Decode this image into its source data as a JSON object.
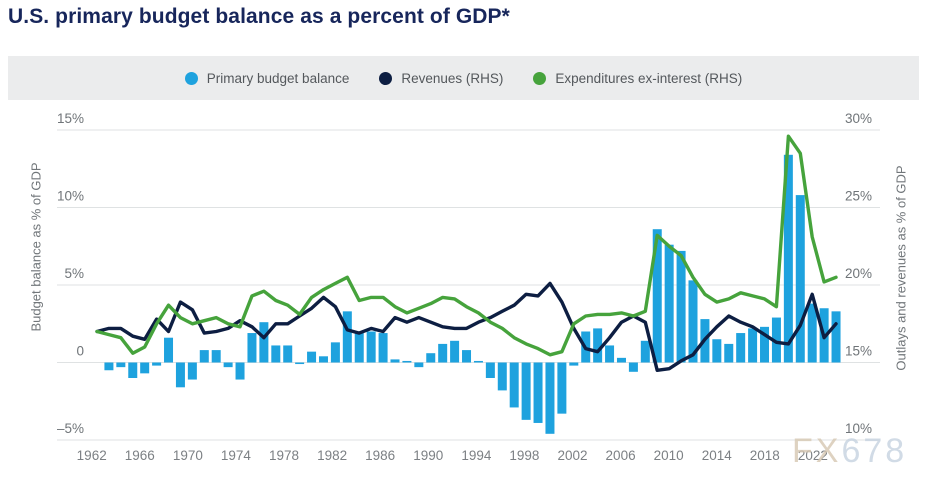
{
  "page": {
    "title": "U.S. primary budget balance as a percent of GDP*",
    "watermark": {
      "part1": "FX",
      "part2": "678"
    }
  },
  "legend": {
    "items": [
      {
        "label": "Primary budget balance",
        "color": "#1ea2de",
        "marker": "circle"
      },
      {
        "label": "Revenues (RHS)",
        "color": "#0d1e42",
        "marker": "circle"
      },
      {
        "label": "Expenditures ex-interest (RHS)",
        "color": "#46a33c",
        "marker": "circle"
      }
    ]
  },
  "chart_data": {
    "type": "bar",
    "title": "U.S. primary budget balance as a percent of GDP*",
    "x": [
      1962,
      1963,
      1964,
      1965,
      1966,
      1967,
      1968,
      1969,
      1970,
      1971,
      1972,
      1973,
      1974,
      1975,
      1976,
      1977,
      1978,
      1979,
      1980,
      1981,
      1982,
      1983,
      1984,
      1985,
      1986,
      1987,
      1988,
      1989,
      1990,
      1991,
      1992,
      1993,
      1994,
      1995,
      1996,
      1997,
      1998,
      1999,
      2000,
      2001,
      2002,
      2003,
      2004,
      2005,
      2006,
      2007,
      2008,
      2009,
      2010,
      2011,
      2012,
      2013,
      2014,
      2015,
      2016,
      2017,
      2018,
      2019,
      2020,
      2021,
      2022,
      2023,
      2024
    ],
    "series": [
      {
        "name": "Primary budget balance",
        "type": "bar",
        "axis": "left",
        "color": "#1ea2de",
        "values": [
          0.0,
          -0.5,
          -0.3,
          -1.0,
          -0.7,
          -0.2,
          1.6,
          -1.6,
          -1.1,
          0.8,
          0.8,
          -0.3,
          -1.1,
          1.9,
          2.6,
          1.1,
          1.1,
          -0.1,
          0.7,
          0.4,
          1.3,
          3.3,
          1.9,
          2.0,
          1.9,
          0.2,
          0.1,
          -0.3,
          0.6,
          1.2,
          1.4,
          0.8,
          0.1,
          -1.0,
          -1.8,
          -2.9,
          -3.7,
          -3.9,
          -4.6,
          -3.3,
          -0.2,
          2.0,
          2.2,
          1.1,
          0.3,
          -0.6,
          1.4,
          8.6,
          7.6,
          7.2,
          5.3,
          2.8,
          1.5,
          1.2,
          1.9,
          2.2,
          2.3,
          2.9,
          13.4,
          10.8,
          3.8,
          3.5,
          3.3
        ]
      },
      {
        "name": "Revenues (RHS)",
        "type": "line",
        "axis": "right",
        "color": "#0d1e42",
        "values": [
          17.0,
          17.2,
          17.2,
          16.7,
          16.5,
          17.8,
          17.0,
          18.9,
          18.4,
          16.9,
          17.0,
          17.2,
          17.7,
          17.3,
          16.6,
          17.5,
          17.5,
          18.0,
          18.5,
          19.2,
          18.6,
          17.1,
          16.9,
          17.2,
          17.0,
          17.9,
          17.6,
          17.9,
          17.6,
          17.3,
          17.2,
          17.2,
          17.6,
          17.9,
          18.3,
          18.7,
          19.4,
          19.3,
          20.1,
          18.9,
          17.2,
          15.9,
          15.7,
          16.6,
          17.6,
          18.0,
          17.6,
          14.5,
          14.6,
          15.1,
          15.5,
          16.5,
          17.3,
          18.0,
          17.6,
          17.3,
          16.8,
          16.3,
          16.2,
          17.4,
          19.4,
          16.6,
          17.5
        ]
      },
      {
        "name": "Expenditures ex-interest (RHS)",
        "type": "line",
        "axis": "right",
        "color": "#46a33c",
        "values": [
          17.0,
          16.8,
          16.6,
          15.6,
          16.0,
          17.5,
          18.7,
          17.9,
          17.5,
          17.7,
          17.9,
          17.5,
          17.3,
          19.3,
          19.6,
          19.0,
          18.7,
          18.1,
          19.2,
          19.7,
          20.1,
          20.5,
          19.0,
          19.2,
          19.2,
          18.6,
          18.2,
          18.5,
          18.8,
          19.2,
          19.1,
          18.6,
          18.2,
          17.6,
          17.2,
          16.6,
          16.2,
          15.9,
          15.5,
          15.7,
          17.5,
          18.0,
          18.1,
          18.1,
          18.2,
          18.0,
          18.3,
          23.2,
          22.5,
          21.9,
          20.5,
          19.4,
          18.9,
          19.1,
          19.5,
          19.3,
          19.1,
          18.6,
          29.6,
          28.5,
          23.1,
          20.2,
          20.5
        ]
      }
    ],
    "left_axis": {
      "title": "Budget balance as % of GDP",
      "tick_values": [
        15,
        10,
        5,
        0,
        -5
      ],
      "tick_labels": [
        "15%",
        "10%",
        "5%",
        "0",
        "–5%"
      ],
      "range": [
        -6.5,
        16.5
      ]
    },
    "right_axis": {
      "title": "Outlays and revenues as % of GDP",
      "tick_values": [
        30,
        25,
        20,
        15,
        10
      ],
      "tick_labels": [
        "30%",
        "25%",
        "20%",
        "15%",
        "10%"
      ],
      "range": [
        8.5,
        31.5
      ]
    },
    "x_axis": {
      "tick_years": [
        1962,
        1966,
        1970,
        1974,
        1978,
        1982,
        1986,
        1990,
        1994,
        1998,
        2002,
        2006,
        2010,
        2014,
        2018,
        2022
      ]
    },
    "grid": true,
    "legend_position": "top"
  },
  "colors": {
    "title": "#17265b",
    "legend_band": "#ebeced",
    "gridline": "#dfe2e3",
    "axis_tick_text": "#6f7478",
    "x_tick_text": "#7c8084"
  }
}
